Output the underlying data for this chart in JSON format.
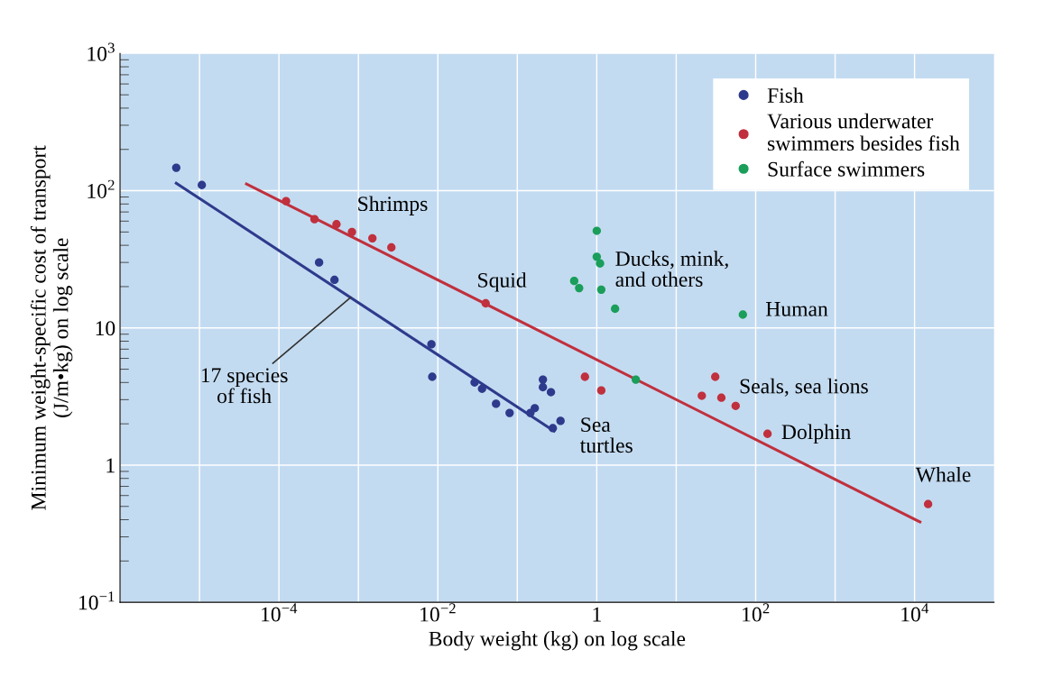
{
  "chart_data": {
    "type": "scatter",
    "xlabel": "Body weight (kg) on log scale",
    "ylabel": "Minimum weight-specific cost of transport\n(J/m•kg) on log scale",
    "log": "xy",
    "grid": true,
    "legend": "top right",
    "marker": "circle",
    "xlim": [
      1e-06,
      100000.0
    ],
    "ylim": [
      0.1,
      1000
    ],
    "xticks": [
      {
        "value": 1e-06,
        "label": null
      },
      {
        "value": 1e-05,
        "label": null
      },
      {
        "value": 0.0001,
        "label": "10$^{−4}$"
      },
      {
        "value": 0.001,
        "label": null
      },
      {
        "value": 0.01,
        "label": "10$^{−2}$"
      },
      {
        "value": 0.1,
        "label": null
      },
      1,
      {
        "value": 10,
        "label": null
      },
      {
        "value": 100,
        "label": "10$^{2}$"
      },
      {
        "value": 1000,
        "label": null
      },
      {
        "value": 10000,
        "label": "10$^{4}$"
      }
    ],
    "yticks": [
      {
        "value": 0.1,
        "label": "10$^{−1}$"
      },
      1,
      10,
      {
        "value": 100,
        "label": "10$^{2}$"
      },
      {
        "value": 1000,
        "label": "10$^{3}$"
      }
    ],
    "series": [
      {
        "name": "Fish",
        "color": "#2e3a8c",
        "x": [
          5.1e-06,
          1.07e-05,
          0.00032,
          0.0005,
          0.0083,
          0.0085,
          0.029,
          0.036,
          0.054,
          0.08,
          0.146,
          0.166,
          0.21,
          0.21,
          0.265,
          0.28,
          0.35
        ],
        "values": [
          147,
          110,
          30,
          22.4,
          7.6,
          4.4,
          4.0,
          3.6,
          2.8,
          2.4,
          2.4,
          2.6,
          4.2,
          3.7,
          3.4,
          1.86,
          2.1
        ]
      },
      {
        "name": "Various underwater\nswimmers besides fish",
        "color": "#c0303d",
        "x": [
          0.000123,
          0.00028,
          0.00053,
          0.00083,
          0.0015,
          0.0026,
          0.04,
          0.71,
          1.14,
          21,
          31,
          37,
          56,
          141,
          14800
        ],
        "values": [
          84,
          62,
          57,
          50,
          45,
          38.6,
          15.1,
          4.4,
          3.5,
          3.2,
          4.4,
          3.1,
          2.7,
          1.69,
          0.52
        ]
      },
      {
        "name": "Surface swimmers",
        "color": "#1a9e5a",
        "x": [
          1.0,
          1.0,
          1.1,
          0.52,
          0.6,
          1.14,
          1.7,
          3.1,
          69
        ],
        "values": [
          51,
          33,
          29.5,
          22,
          19.5,
          19,
          13.8,
          4.2,
          12.5
        ]
      },
      {
        "type": "line",
        "marker": "none",
        "color": "#2e3a8c",
        "x": [
          5.1e-06,
          0.29
        ],
        "values": [
          113.5,
          1.77
        ]
      },
      {
        "type": "line",
        "marker": "none",
        "color": "#c0303d",
        "x": [
          3.9e-05,
          11700
        ],
        "values": [
          112,
          0.385
        ]
      }
    ],
    "annotations": [
      {
        "text": "Shrimps",
        "x": 0.00083,
        "y": 50
      },
      {
        "text": "Squid",
        "x": 0.04,
        "y": 15.1
      },
      {
        "text": "Ducks, mink,\nand others",
        "x": 1.1,
        "y": 29.5
      },
      {
        "text": "Human",
        "x": 69,
        "y": 12.5
      },
      {
        "text": "Seals, sea lions",
        "x": 31,
        "y": 4.4
      },
      {
        "text": "Dolphin",
        "x": 141,
        "y": 1.69
      },
      {
        "text": "Whale",
        "x": 14800,
        "y": 0.52
      },
      {
        "text": "Sea\nturtles",
        "x": 0.71,
        "y": 4.4
      },
      {
        "text": "17 species\nof fish",
        "x": 0.0008,
        "y": 16.7
      }
    ]
  }
}
